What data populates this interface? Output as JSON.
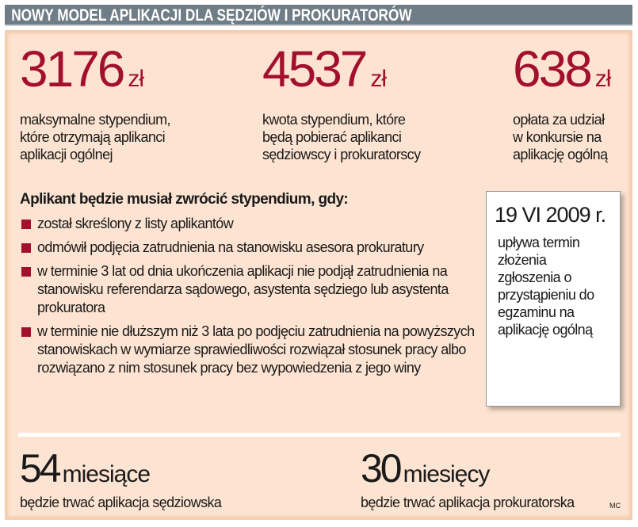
{
  "header": {
    "title": "NOWY MODEL APLIKACJI DLA SĘDZIÓW I PROKURATORÓW"
  },
  "stats": [
    {
      "value": "3176",
      "unit": "zł",
      "lines": [
        "maksymalne stypendium,",
        "które otrzymają aplikanci",
        "aplikacji ogólnej"
      ]
    },
    {
      "value": "4537",
      "unit": "zł",
      "lines": [
        "kwota stypendium, które",
        "będą pobierać aplikanci",
        "sędziowscy i prokuratorscy"
      ]
    },
    {
      "value": "638",
      "unit": "zł",
      "lines": [
        "opłata za udział",
        "w konkursie na",
        "aplikację ogólną"
      ]
    }
  ],
  "rules": {
    "title": "Aplikant będzie musiał zwrócić stypendium, gdy:",
    "items": [
      "został skreślony z listy aplikantów",
      "odmówił podjęcia zatrudnienia na stanowisku asesora prokuratury",
      "w terminie 3 lat od dnia ukończenia aplikacji nie podjął zatrudnienia na stanowisku referendarza sądowego, asystenta sędziego lub asystenta prokuratora",
      "w terminie nie dłuższym niż 3 lata po podjęciu zatrudnienia na powyższych stanowiskach w wymiarze sprawiedliwości rozwiązał stosunek pracy albo rozwiązano z nim stosunek pracy bez wypowiedzenia z jego winy"
    ]
  },
  "deadline": {
    "date": "19 VI 2009 r.",
    "text": "upływa termin złożenia zgłoszenia o przystąpieniu do egzaminu na aplikację ogólną"
  },
  "durations": [
    {
      "value": "54",
      "unit": "miesiące",
      "text": "będzie trwać aplikacja sędziowska"
    },
    {
      "value": "30",
      "unit": "miesięcy",
      "text": "będzie trwać aplikacja prokuratorska"
    }
  ],
  "credit": "MC",
  "colors": {
    "accent": "#a3102e",
    "panel": "#fde4d2",
    "header": "#6f7d86"
  }
}
